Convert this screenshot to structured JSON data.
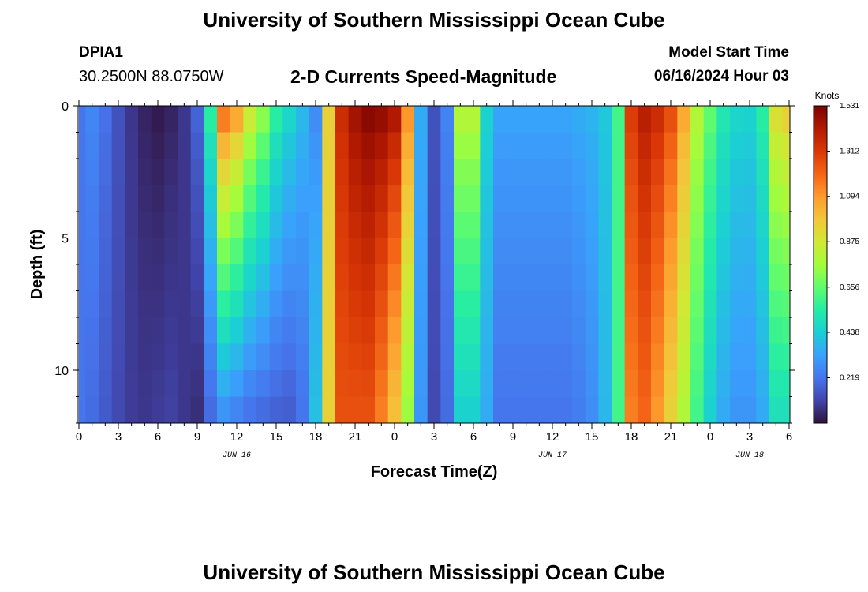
{
  "header": {
    "title": "University of Southern Mississippi Ocean Cube",
    "station": "DPIA1",
    "coords": "30.2500N  88.0750W",
    "subtitle": "2-D Currents Speed-Magnitude",
    "model_start_label": "Model Start Time",
    "model_start_value": "06/16/2024 Hour 03"
  },
  "footer": {
    "title": "University of Southern Mississippi Ocean Cube"
  },
  "chart_data": {
    "type": "heatmap",
    "title": "2-D Currents Speed-Magnitude",
    "xlabel": "Forecast Time(Z)",
    "ylabel": "Depth (ft)",
    "x_tick_labels": [
      "0",
      "3",
      "6",
      "9",
      "12",
      "15",
      "18",
      "21",
      "0",
      "3",
      "6",
      "9",
      "12",
      "15",
      "18",
      "21",
      "0",
      "3",
      "6"
    ],
    "x_hours_start": 0,
    "x_hours_end": 54,
    "date_labels": [
      {
        "text": "JUN 16",
        "hour": 12
      },
      {
        "text": "JUN 17",
        "hour": 36
      },
      {
        "text": "JUN 18",
        "hour": 51
      }
    ],
    "y_tick_labels": [
      "0",
      "5",
      "10"
    ],
    "y_ticks": [
      0,
      5,
      10
    ],
    "ylim": [
      0,
      12
    ],
    "y_inverted": true,
    "depth_levels": 12,
    "colorbar": {
      "unit": "Knots",
      "ticks": [
        "1.531",
        "1.312",
        "1.094",
        "0.875",
        "0.656",
        "0.438",
        "0.219"
      ],
      "min": 0,
      "max": 1.531,
      "colors": [
        "#30123b",
        "#4145ab",
        "#4675ed",
        "#39a2fc",
        "#1bcfd4",
        "#24eca6",
        "#61fc6c",
        "#a4fc3b",
        "#d1e834",
        "#f3c63a",
        "#fe9b2d",
        "#f36315",
        "#d93806",
        "#b11901",
        "#7a0403"
      ]
    },
    "speed_knots": [
      {
        "hour": 0,
        "surface": 0.22,
        "bottom": 0.22
      },
      {
        "hour": 1,
        "surface": 0.26,
        "bottom": 0.2
      },
      {
        "hour": 2,
        "surface": 0.21,
        "bottom": 0.16
      },
      {
        "hour": 3,
        "surface": 0.14,
        "bottom": 0.12
      },
      {
        "hour": 4,
        "surface": 0.08,
        "bottom": 0.09
      },
      {
        "hour": 5,
        "surface": 0.04,
        "bottom": 0.08
      },
      {
        "hour": 6,
        "surface": 0.02,
        "bottom": 0.09
      },
      {
        "hour": 7,
        "surface": 0.04,
        "bottom": 0.1
      },
      {
        "hour": 8,
        "surface": 0.08,
        "bottom": 0.08
      },
      {
        "hour": 9,
        "surface": 0.18,
        "bottom": 0.06
      },
      {
        "hour": 10,
        "surface": 0.55,
        "bottom": 0.2
      },
      {
        "hour": 11,
        "surface": 1.15,
        "bottom": 0.3
      },
      {
        "hour": 12,
        "surface": 1.05,
        "bottom": 0.26
      },
      {
        "hour": 13,
        "surface": 0.85,
        "bottom": 0.22
      },
      {
        "hour": 14,
        "surface": 0.72,
        "bottom": 0.2
      },
      {
        "hour": 15,
        "surface": 0.55,
        "bottom": 0.18
      },
      {
        "hour": 16,
        "surface": 0.46,
        "bottom": 0.17
      },
      {
        "hour": 17,
        "surface": 0.38,
        "bottom": 0.22
      },
      {
        "hour": 18,
        "surface": 0.28,
        "bottom": 0.4
      },
      {
        "hour": 19,
        "surface": 0.95,
        "bottom": 0.95
      },
      {
        "hour": 20,
        "surface": 1.35,
        "bottom": 1.25
      },
      {
        "hour": 21,
        "surface": 1.45,
        "bottom": 1.25
      },
      {
        "hour": 22,
        "surface": 1.5,
        "bottom": 1.25
      },
      {
        "hour": 23,
        "surface": 1.48,
        "bottom": 1.15
      },
      {
        "hour": 24,
        "surface": 1.42,
        "bottom": 1.0
      },
      {
        "hour": 25,
        "surface": 1.1,
        "bottom": 0.75
      },
      {
        "hour": 26,
        "surface": 0.35,
        "bottom": 0.3
      },
      {
        "hour": 27,
        "surface": 0.14,
        "bottom": 0.12
      },
      {
        "hour": 28,
        "surface": 0.25,
        "bottom": 0.2
      },
      {
        "hour": 29,
        "surface": 0.8,
        "bottom": 0.45
      },
      {
        "hour": 30,
        "surface": 0.8,
        "bottom": 0.45
      },
      {
        "hour": 31,
        "surface": 0.45,
        "bottom": 0.35
      },
      {
        "hour": 32,
        "surface": 0.33,
        "bottom": 0.22
      },
      {
        "hour": 33,
        "surface": 0.33,
        "bottom": 0.22
      },
      {
        "hour": 34,
        "surface": 0.33,
        "bottom": 0.22
      },
      {
        "hour": 35,
        "surface": 0.33,
        "bottom": 0.22
      },
      {
        "hour": 36,
        "surface": 0.33,
        "bottom": 0.22
      },
      {
        "hour": 37,
        "surface": 0.33,
        "bottom": 0.22
      },
      {
        "hour": 38,
        "surface": 0.35,
        "bottom": 0.24
      },
      {
        "hour": 39,
        "surface": 0.37,
        "bottom": 0.28
      },
      {
        "hour": 40,
        "surface": 0.42,
        "bottom": 0.38
      },
      {
        "hour": 41,
        "surface": 0.6,
        "bottom": 0.6
      },
      {
        "hour": 42,
        "surface": 1.3,
        "bottom": 1.15
      },
      {
        "hour": 43,
        "surface": 1.4,
        "bottom": 1.2
      },
      {
        "hour": 44,
        "surface": 1.35,
        "bottom": 1.1
      },
      {
        "hour": 45,
        "surface": 1.25,
        "bottom": 0.95
      },
      {
        "hour": 46,
        "surface": 1.05,
        "bottom": 0.8
      },
      {
        "hour": 47,
        "surface": 0.8,
        "bottom": 0.6
      },
      {
        "hour": 48,
        "surface": 0.65,
        "bottom": 0.45
      },
      {
        "hour": 49,
        "surface": 0.52,
        "bottom": 0.35
      },
      {
        "hour": 50,
        "surface": 0.46,
        "bottom": 0.3
      },
      {
        "hour": 51,
        "surface": 0.45,
        "bottom": 0.3
      },
      {
        "hour": 52,
        "surface": 0.55,
        "bottom": 0.35
      },
      {
        "hour": 53,
        "surface": 0.9,
        "bottom": 0.5
      },
      {
        "hour": 54,
        "surface": 0.95,
        "bottom": 0.5
      }
    ]
  }
}
